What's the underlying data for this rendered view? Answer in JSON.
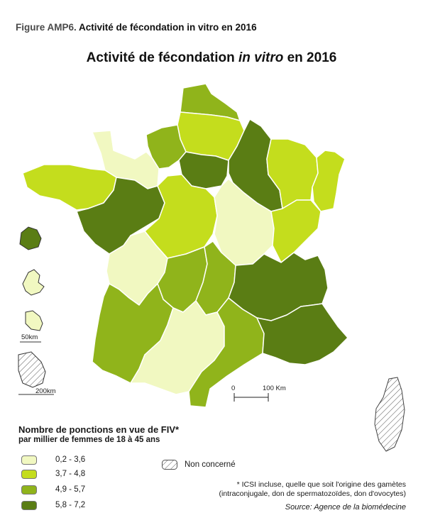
{
  "figure": {
    "label": "Figure AMP6.",
    "text": "Activité de fécondation in vitro en 2016"
  },
  "map": {
    "title_pre": "Activité de fécondation ",
    "title_em": "in vitro",
    "title_post": " en 2016"
  },
  "colors": {
    "class1": "#f1f8c1",
    "class2": "#c4dd1d",
    "class3": "#90b41b",
    "class4": "#5a7d14",
    "nc": "#ffffff",
    "border": "#ffffff"
  },
  "legend": {
    "title": "Nombre de ponctions en vue de FIV*",
    "subtitle": "par millier de femmes de 18 à 45 ans",
    "items": [
      {
        "label": "0,2 - 3,6",
        "color": "#f1f8c1"
      },
      {
        "label": "3,7 - 4,8",
        "color": "#c4dd1d"
      },
      {
        "label": "4,9 - 5,7",
        "color": "#90b41b"
      },
      {
        "label": "5,8 - 7,2",
        "color": "#5a7d14"
      }
    ],
    "not_concerned": "Non concerné"
  },
  "scale": {
    "zero": "0",
    "end": "100 Km"
  },
  "insets": {
    "scale_small": "50km",
    "scale_large": "200km"
  },
  "footnote": {
    "line1": "* ICSI incluse, quelle que soit l'origine des gamètes",
    "line2": "(intraconjugale, don de spermatozoïdes, don d'ovocytes)"
  },
  "source": "Source: Agence de la biomédecine"
}
